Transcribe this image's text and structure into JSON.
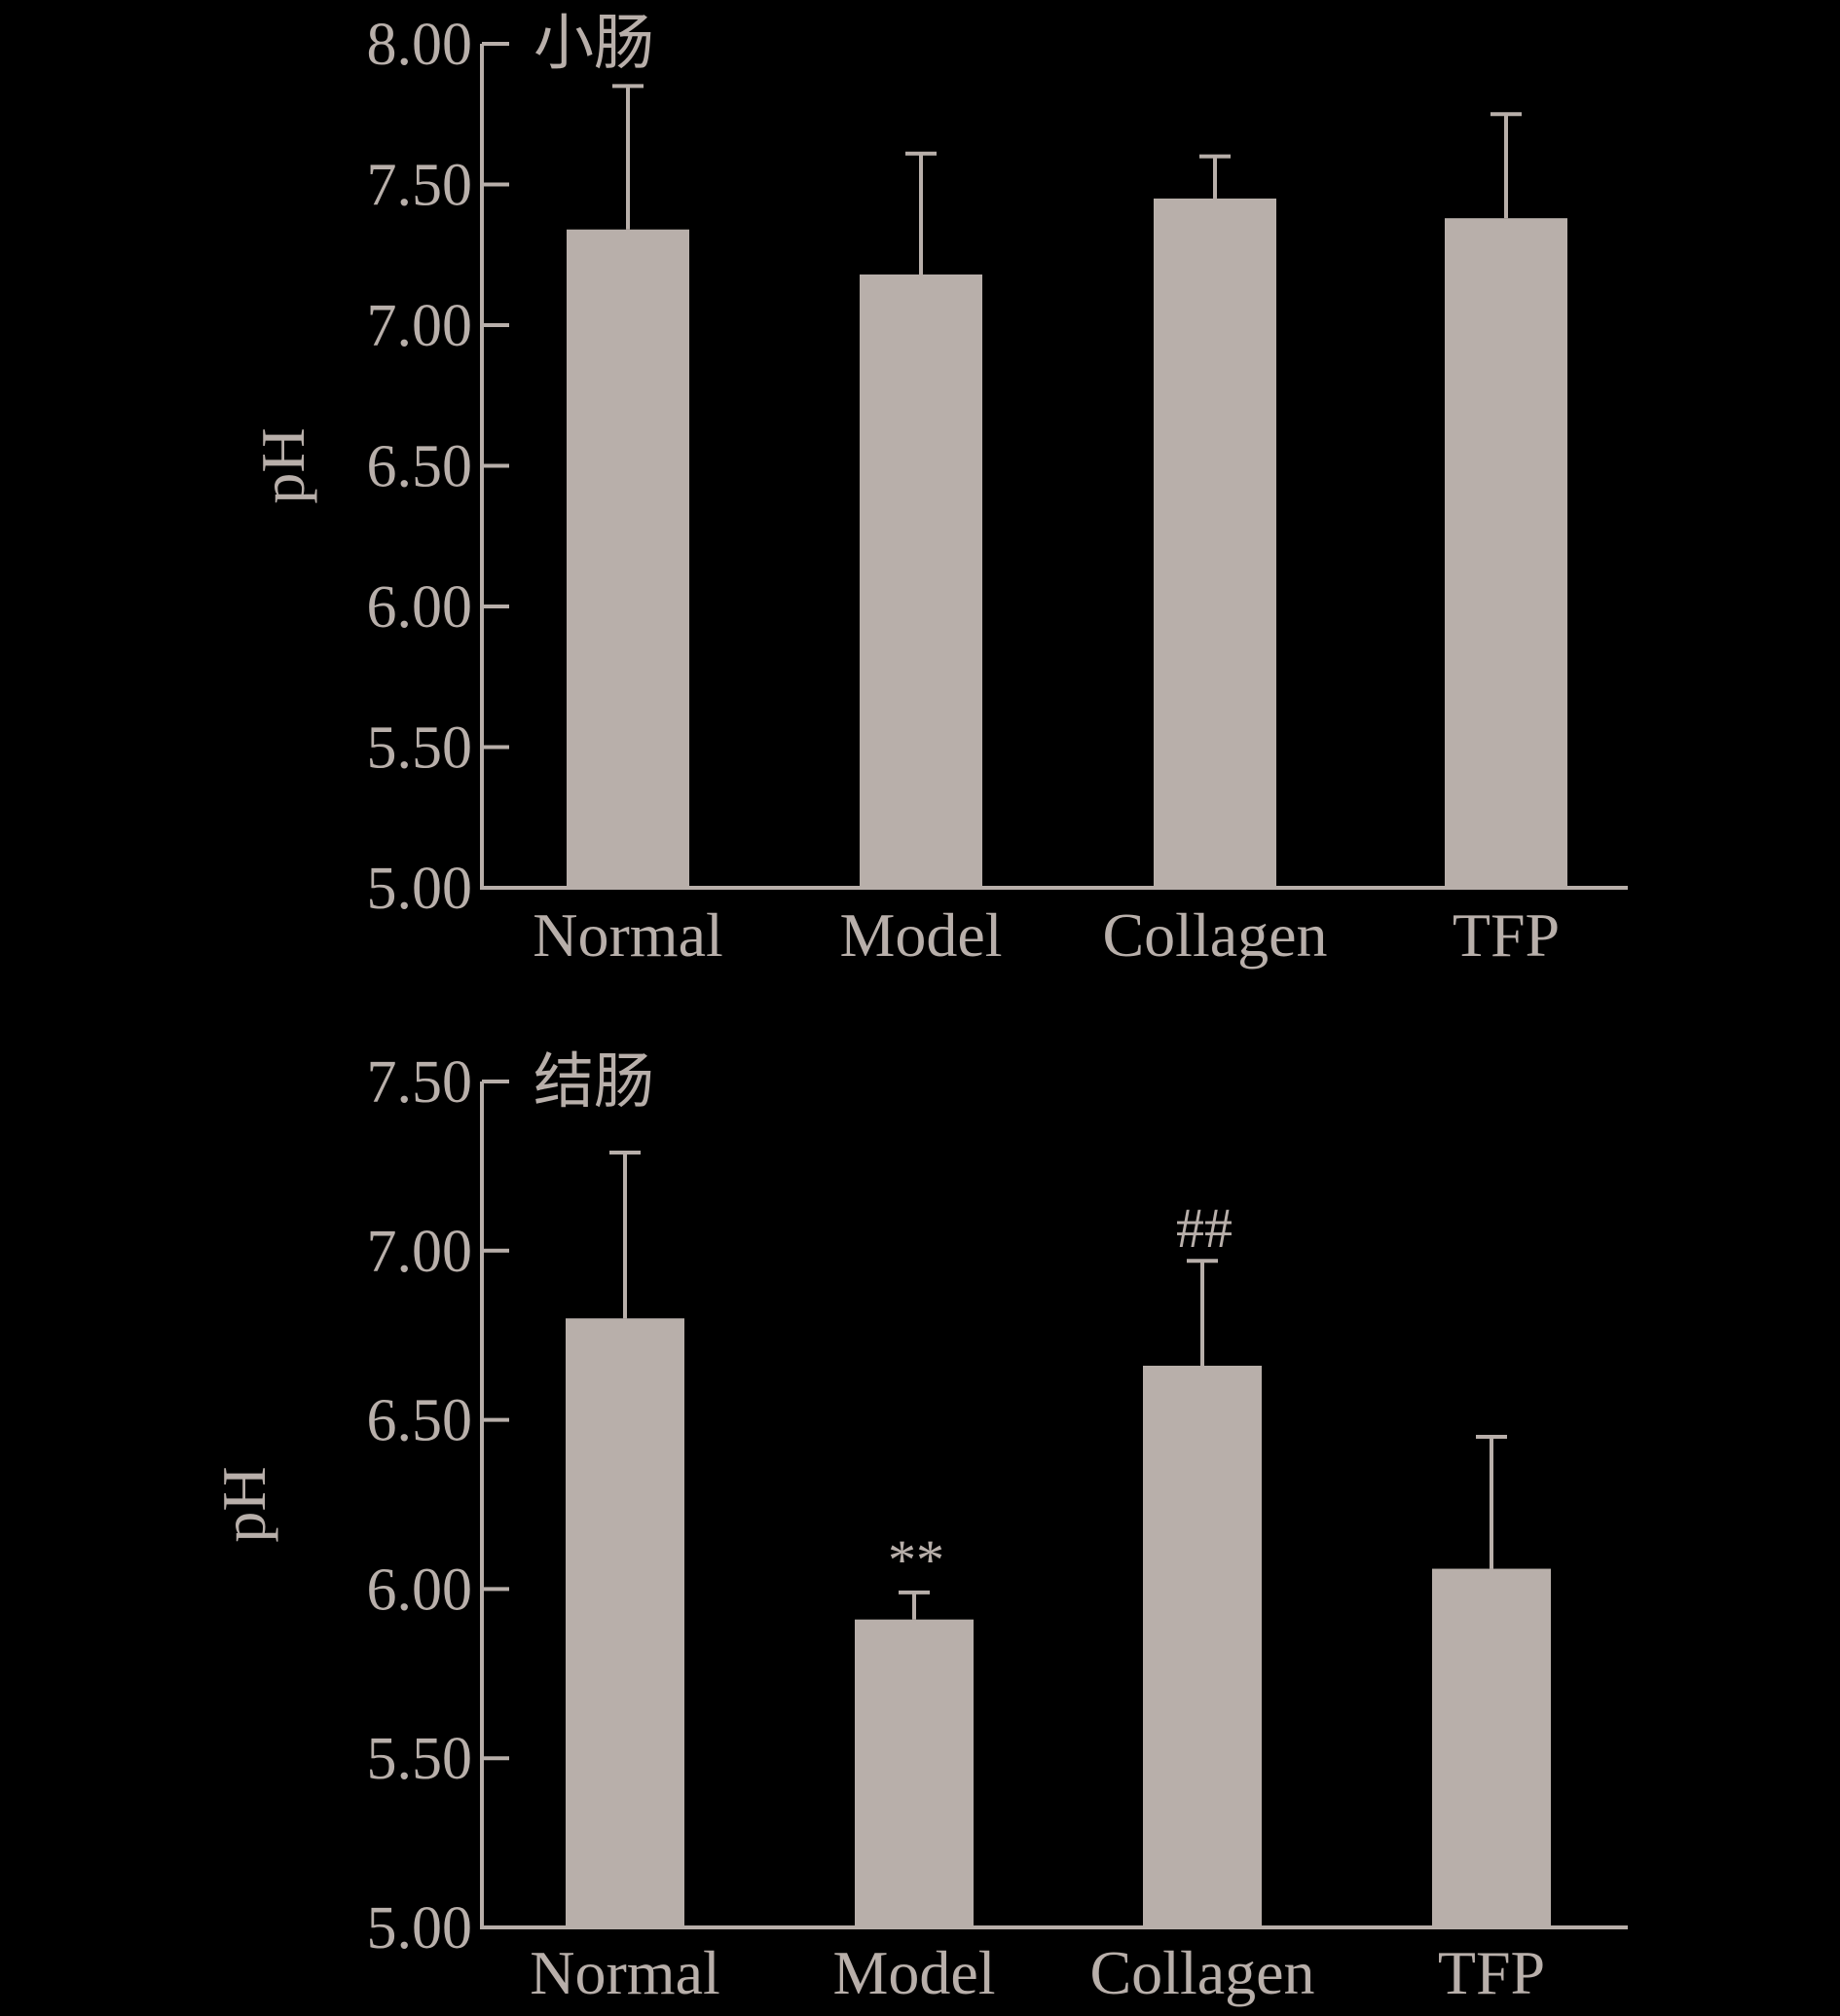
{
  "chart_data": [
    {
      "type": "bar",
      "title": "小肠",
      "ylabel": "pH",
      "xlabel": "",
      "ylim": [
        5.0,
        8.0
      ],
      "yticks": [
        "5.00",
        "5.50",
        "6.00",
        "6.50",
        "7.00",
        "7.50",
        "8.00"
      ],
      "categories": [
        "Normal",
        "Model",
        "Collagen",
        "TFP"
      ],
      "values": [
        7.34,
        7.18,
        7.45,
        7.38
      ],
      "errors": [
        0.51,
        0.43,
        0.15,
        0.37
      ],
      "annotations": [
        "",
        "",
        "",
        ""
      ],
      "grid": false
    },
    {
      "type": "bar",
      "title": "结肠",
      "ylabel": "pH",
      "xlabel": "",
      "ylim": [
        5.0,
        7.5
      ],
      "yticks": [
        "5.00",
        "5.50",
        "6.00",
        "6.50",
        "7.00",
        "7.50"
      ],
      "categories": [
        "Normal",
        "Model",
        "Collagen",
        "TFP"
      ],
      "values": [
        6.8,
        5.91,
        6.66,
        6.06
      ],
      "errors": [
        0.49,
        0.08,
        0.31,
        0.39
      ],
      "annotations": [
        "",
        "**",
        "##",
        ""
      ],
      "grid": false
    }
  ],
  "colors": {
    "background": "#000000",
    "bar": "#b8afaa",
    "axis": "#b8afaa",
    "text": "#b8afaa"
  }
}
